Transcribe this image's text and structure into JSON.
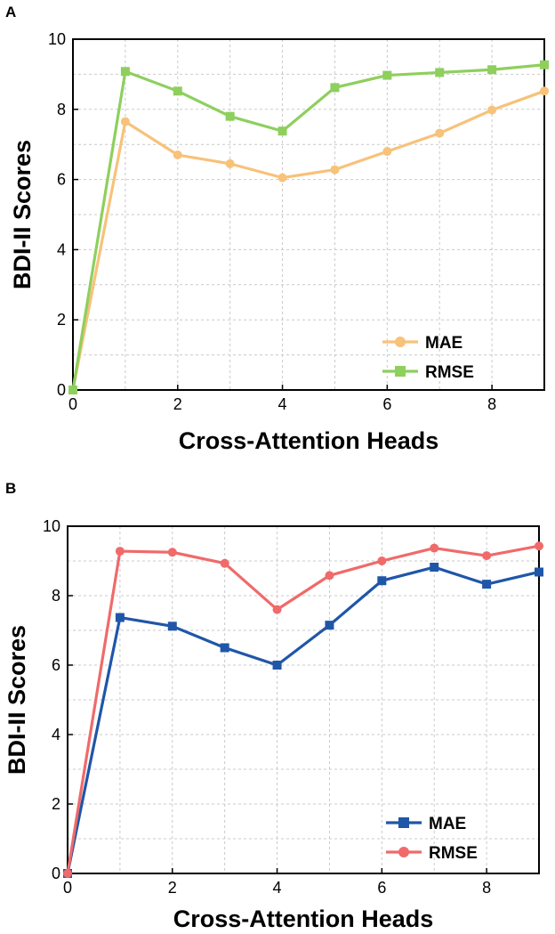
{
  "figure": {
    "panels": [
      {
        "label": "A"
      },
      {
        "label": "B"
      }
    ]
  },
  "chart_data": [
    {
      "type": "line",
      "panel": "A",
      "title": "",
      "xlabel": "Cross-Attention Heads",
      "ylabel": "BDI-II Scores",
      "xlim": [
        0,
        9
      ],
      "ylim": [
        0,
        10
      ],
      "xticks": [
        0,
        2,
        4,
        6,
        8
      ],
      "yticks": [
        0,
        2,
        4,
        6,
        8,
        10
      ],
      "grid": true,
      "legend_position": "bottom-right",
      "x": [
        0,
        1,
        2,
        3,
        4,
        5,
        6,
        7,
        8,
        9
      ],
      "series": [
        {
          "name": "MAE",
          "color": "#f7c27a",
          "marker": "circle",
          "values": [
            0,
            7.65,
            6.7,
            6.45,
            6.05,
            6.28,
            6.8,
            7.32,
            7.98,
            8.52
          ]
        },
        {
          "name": "RMSE",
          "color": "#8ecf5e",
          "marker": "square",
          "values": [
            0,
            9.08,
            8.52,
            7.8,
            7.38,
            8.62,
            8.97,
            9.05,
            9.13,
            9.27
          ]
        }
      ]
    },
    {
      "type": "line",
      "panel": "B",
      "title": "",
      "xlabel": "Cross-Attention Heads",
      "ylabel": "BDI-II Scores",
      "xlim": [
        0,
        9
      ],
      "ylim": [
        0,
        10
      ],
      "xticks": [
        0,
        2,
        4,
        6,
        8
      ],
      "yticks": [
        0,
        2,
        4,
        6,
        8,
        10
      ],
      "grid": true,
      "legend_position": "bottom-right",
      "x": [
        0,
        1,
        2,
        3,
        4,
        5,
        6,
        7,
        8,
        9
      ],
      "series": [
        {
          "name": "MAE",
          "color": "#1f56a8",
          "marker": "square",
          "values": [
            0,
            7.37,
            7.12,
            6.5,
            6.0,
            7.15,
            8.43,
            8.82,
            8.33,
            8.68
          ]
        },
        {
          "name": "RMSE",
          "color": "#f06a6a",
          "marker": "circle",
          "values": [
            0,
            9.28,
            9.25,
            8.93,
            7.6,
            8.58,
            9.0,
            9.37,
            9.15,
            9.43
          ]
        }
      ]
    }
  ]
}
